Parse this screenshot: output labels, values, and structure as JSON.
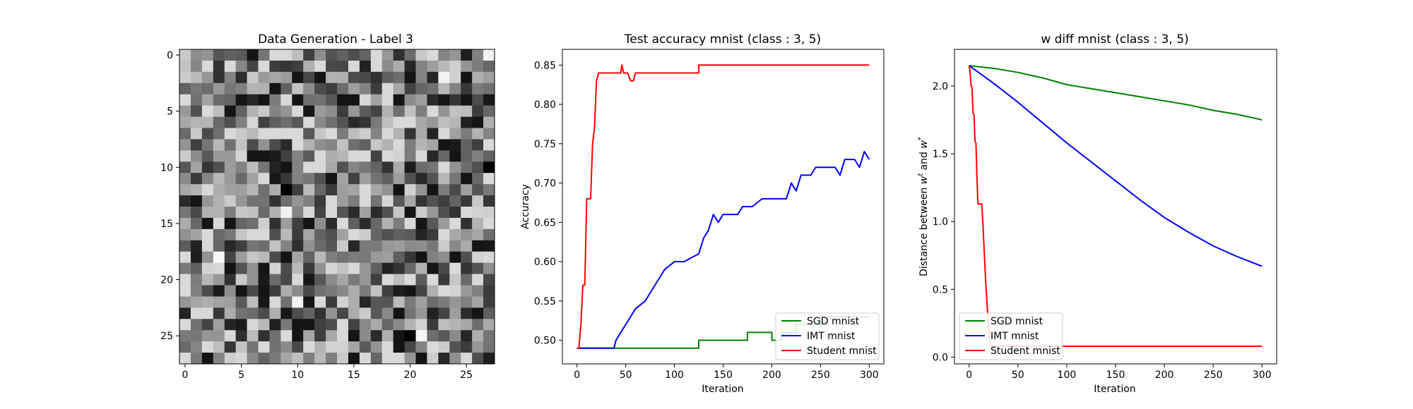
{
  "chart_data": [
    {
      "type": "heatmap",
      "title": "Data Generation - Label 3",
      "colormap": "gray",
      "grid": false,
      "xlim": [
        -0.5,
        27.5
      ],
      "ylim": [
        27.5,
        -0.5
      ],
      "xticks": [
        0,
        5,
        10,
        15,
        20,
        25
      ],
      "yticks": [
        0,
        5,
        10,
        15,
        20,
        25
      ],
      "matrix_size": [
        28,
        28
      ],
      "pixel_value_range": [
        0,
        1
      ],
      "notable_pixels": [
        {
          "row": 0,
          "col": 27,
          "value": 0.95
        },
        {
          "row": 2,
          "col": 23,
          "value": 0.95
        },
        {
          "row": 12,
          "col": 9,
          "value": 0.0
        },
        {
          "row": 14,
          "col": 9,
          "value": 0.95
        },
        {
          "row": 10,
          "col": 27,
          "value": 0.0
        },
        {
          "row": 18,
          "col": 3,
          "value": 0.97
        },
        {
          "row": 22,
          "col": 10,
          "value": 0.95
        },
        {
          "row": 25,
          "col": 21,
          "value": 0.97
        },
        {
          "row": 25,
          "col": 20,
          "value": 0.0
        }
      ]
    },
    {
      "type": "line",
      "title": "Test accuracy mnist (class : 3, 5)",
      "xlabel": "Iteration",
      "ylabel": "Accuracy",
      "xlim": [
        -15,
        315
      ],
      "ylim": [
        0.47,
        0.87
      ],
      "xticks": [
        0,
        50,
        100,
        150,
        200,
        250,
        300
      ],
      "yticks": [
        0.5,
        0.55,
        0.6,
        0.65,
        0.7,
        0.75,
        0.8,
        0.85
      ],
      "ytick_labels": [
        "0.50",
        "0.55",
        "0.60",
        "0.65",
        "0.70",
        "0.75",
        "0.80",
        "0.85"
      ],
      "legend_position": "lower-right",
      "grid": false,
      "series": [
        {
          "name": "SGD mnist",
          "color": "#008000",
          "points": [
            [
              0,
              0.49
            ],
            [
              125,
              0.49
            ],
            [
              125,
              0.5
            ],
            [
              175,
              0.5
            ],
            [
              175,
              0.51
            ],
            [
              200,
              0.51
            ],
            [
              200,
              0.5
            ],
            [
              210,
              0.5
            ],
            [
              210,
              0.51
            ],
            [
              225,
              0.51
            ],
            [
              225,
              0.52
            ],
            [
              250,
              0.52
            ],
            [
              250,
              0.53
            ],
            [
              300,
              0.53
            ]
          ]
        },
        {
          "name": "IMT mnist",
          "color": "#0000ff",
          "points": [
            [
              0,
              0.49
            ],
            [
              38,
              0.49
            ],
            [
              40,
              0.5
            ],
            [
              45,
              0.51
            ],
            [
              50,
              0.52
            ],
            [
              55,
              0.53
            ],
            [
              60,
              0.54
            ],
            [
              70,
              0.55
            ],
            [
              75,
              0.56
            ],
            [
              80,
              0.57
            ],
            [
              85,
              0.58
            ],
            [
              90,
              0.59
            ],
            [
              100,
              0.6
            ],
            [
              110,
              0.6
            ],
            [
              125,
              0.61
            ],
            [
              130,
              0.63
            ],
            [
              135,
              0.64
            ],
            [
              140,
              0.66
            ],
            [
              145,
              0.65
            ],
            [
              150,
              0.66
            ],
            [
              165,
              0.66
            ],
            [
              170,
              0.67
            ],
            [
              180,
              0.67
            ],
            [
              190,
              0.68
            ],
            [
              215,
              0.68
            ],
            [
              220,
              0.7
            ],
            [
              225,
              0.69
            ],
            [
              230,
              0.71
            ],
            [
              240,
              0.71
            ],
            [
              245,
              0.72
            ],
            [
              265,
              0.72
            ],
            [
              270,
              0.71
            ],
            [
              275,
              0.73
            ],
            [
              285,
              0.73
            ],
            [
              290,
              0.72
            ],
            [
              295,
              0.74
            ],
            [
              300,
              0.73
            ]
          ]
        },
        {
          "name": "Student mnist",
          "color": "#ff0000",
          "points": [
            [
              0,
              0.49
            ],
            [
              2,
              0.49
            ],
            [
              4,
              0.52
            ],
            [
              6,
              0.57
            ],
            [
              8,
              0.57
            ],
            [
              10,
              0.68
            ],
            [
              14,
              0.68
            ],
            [
              16,
              0.75
            ],
            [
              18,
              0.77
            ],
            [
              20,
              0.83
            ],
            [
              22,
              0.84
            ],
            [
              45,
              0.84
            ],
            [
              46,
              0.85
            ],
            [
              48,
              0.84
            ],
            [
              52,
              0.84
            ],
            [
              55,
              0.83
            ],
            [
              58,
              0.83
            ],
            [
              60,
              0.84
            ],
            [
              125,
              0.84
            ],
            [
              125,
              0.85
            ],
            [
              300,
              0.85
            ]
          ]
        }
      ]
    },
    {
      "type": "line",
      "title": "w diff mnist (class : 3, 5)",
      "xlabel": "Iteration",
      "ylabel": "Distance between w^t and w^*",
      "ylabel_parts": {
        "pre": "Distance between ",
        "w1": "w",
        "sup1": "t",
        "mid": " and ",
        "w2": "w",
        "sup2": "*"
      },
      "xlim": [
        -15,
        315
      ],
      "ylim": [
        -0.05,
        2.27
      ],
      "xticks": [
        0,
        50,
        100,
        150,
        200,
        250,
        300
      ],
      "yticks": [
        0.0,
        0.5,
        1.0,
        1.5,
        2.0
      ],
      "ytick_labels": [
        "0.0",
        "0.5",
        "1.0",
        "1.5",
        "2.0"
      ],
      "legend_position": "lower-left",
      "grid": false,
      "series": [
        {
          "name": "SGD mnist",
          "color": "#008000",
          "points": [
            [
              0,
              2.15
            ],
            [
              25,
              2.13
            ],
            [
              50,
              2.1
            ],
            [
              75,
              2.06
            ],
            [
              100,
              2.01
            ],
            [
              125,
              1.98
            ],
            [
              150,
              1.95
            ],
            [
              175,
              1.92
            ],
            [
              200,
              1.89
            ],
            [
              225,
              1.86
            ],
            [
              250,
              1.82
            ],
            [
              275,
              1.79
            ],
            [
              300,
              1.75
            ]
          ]
        },
        {
          "name": "IMT mnist",
          "color": "#0000ff",
          "points": [
            [
              0,
              2.15
            ],
            [
              25,
              2.02
            ],
            [
              50,
              1.88
            ],
            [
              75,
              1.73
            ],
            [
              100,
              1.58
            ],
            [
              125,
              1.44
            ],
            [
              150,
              1.3
            ],
            [
              175,
              1.16
            ],
            [
              200,
              1.03
            ],
            [
              225,
              0.92
            ],
            [
              250,
              0.82
            ],
            [
              275,
              0.74
            ],
            [
              300,
              0.67
            ]
          ]
        },
        {
          "name": "Student mnist",
          "color": "#ff0000",
          "points": [
            [
              0,
              2.15
            ],
            [
              1,
              2.1
            ],
            [
              2,
              2.0
            ],
            [
              3,
              1.99
            ],
            [
              4,
              1.8
            ],
            [
              5,
              1.79
            ],
            [
              6,
              1.59
            ],
            [
              7,
              1.58
            ],
            [
              8,
              1.33
            ],
            [
              9,
              1.13
            ],
            [
              13,
              1.13
            ],
            [
              14,
              1.0
            ],
            [
              17,
              0.55
            ],
            [
              20,
              0.2
            ],
            [
              22,
              0.08
            ],
            [
              300,
              0.08
            ]
          ]
        }
      ]
    }
  ]
}
